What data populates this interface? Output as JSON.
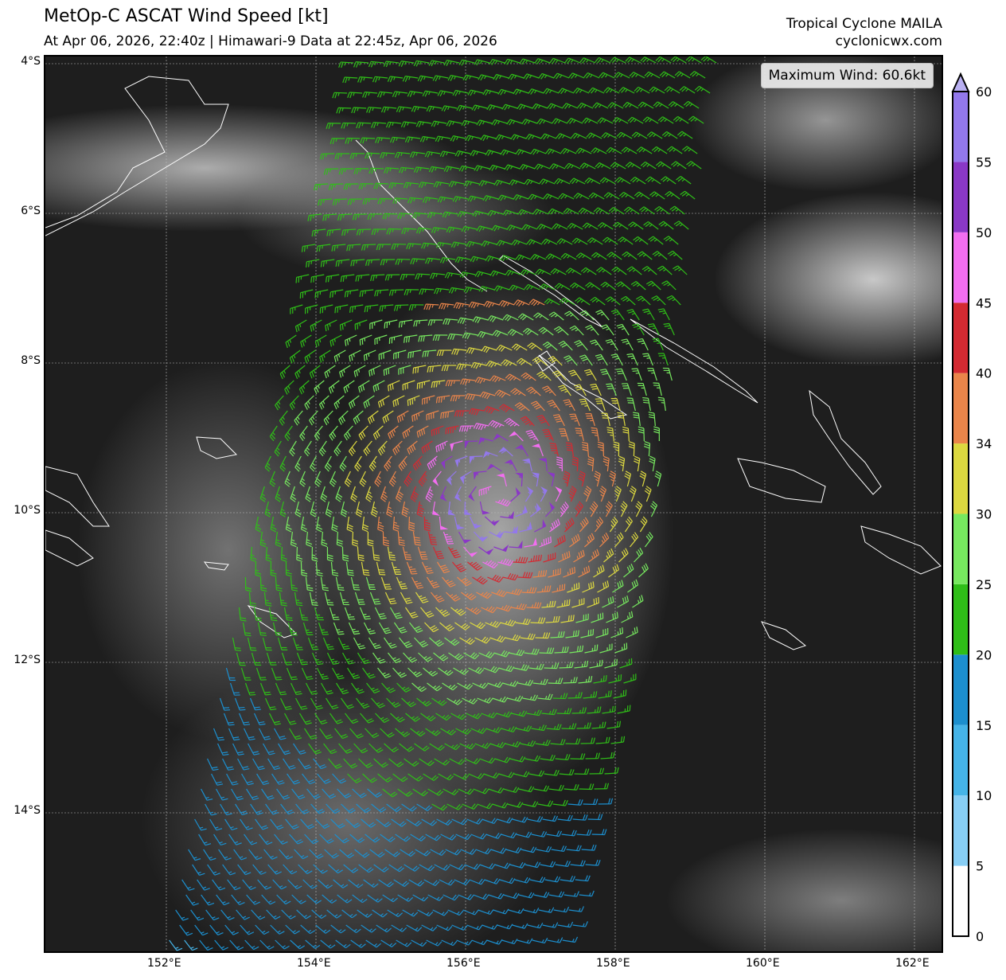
{
  "header": {
    "title": "MetOp-C ASCAT Wind Speed [kt]",
    "subtitle": "At Apr 06, 2026, 22:40z | Himawari-9 Data at 22:45z, Apr 06, 2026",
    "storm": "Tropical Cyclone MAILA",
    "site": "cyclonicwx.com"
  },
  "max_wind": "Maximum Wind: 60.6kt",
  "lat_labels": [
    "4°S",
    "6°S",
    "8°S",
    "10°S",
    "12°S",
    "14°S"
  ],
  "lon_labels": [
    "152°E",
    "154°E",
    "156°E",
    "158°E",
    "160°E",
    "162°E"
  ],
  "colorbar": {
    "ticks": [
      "0",
      "5",
      "10",
      "15",
      "20",
      "25",
      "30",
      "34",
      "40",
      "45",
      "50",
      "55",
      "60"
    ],
    "colors": [
      "#ffffff",
      "#87cef5",
      "#45b4e8",
      "#1c8fce",
      "#2fbe18",
      "#77e85f",
      "#dcd840",
      "#ea854a",
      "#d42a32",
      "#f26ef0",
      "#8a38c6",
      "#9378ec"
    ],
    "extend_color": "#b9b0f2"
  }
}
